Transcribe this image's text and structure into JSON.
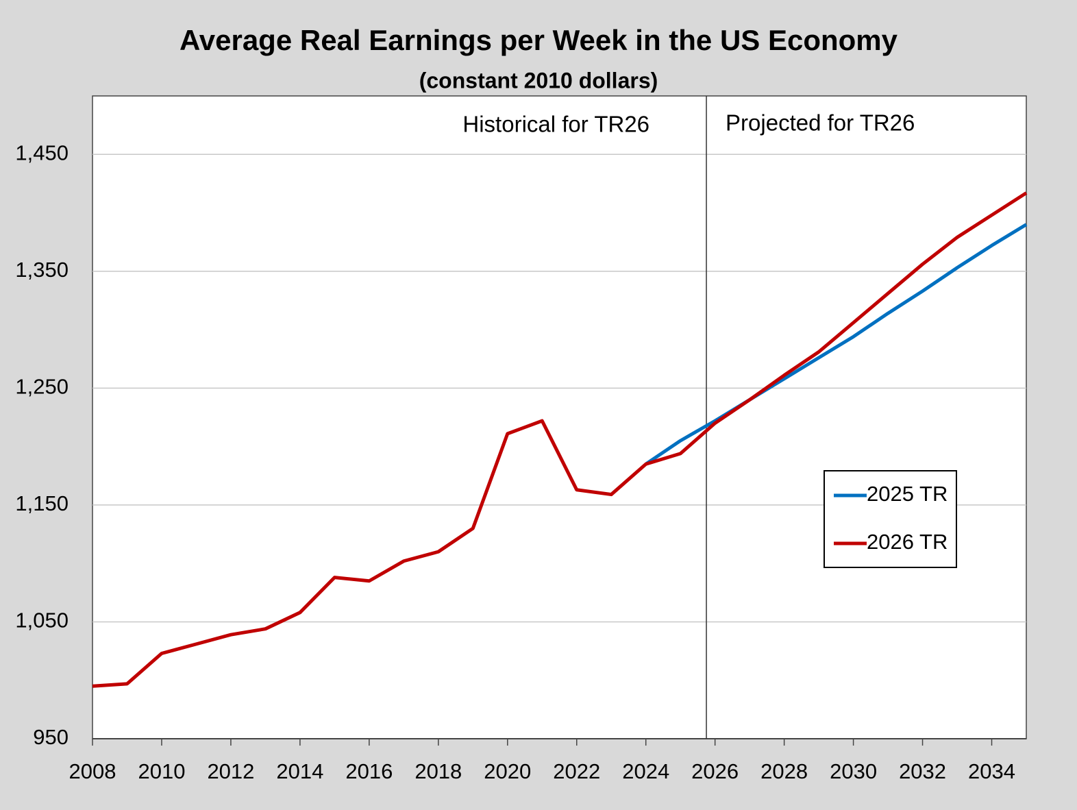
{
  "chart_data": {
    "type": "line",
    "title": "Average Real Earnings per Week in the US Economy",
    "subtitle": "(constant 2010 dollars)",
    "annotations": [
      "Historical for TR26",
      "Projected for TR26"
    ],
    "divider": 2025.75,
    "x": [
      2008,
      2009,
      2010,
      2011,
      2012,
      2013,
      2014,
      2015,
      2016,
      2017,
      2018,
      2019,
      2020,
      2021,
      2022,
      2023,
      2024,
      2025,
      2026,
      2027,
      2028,
      2029,
      2030,
      2031,
      2032,
      2033,
      2034,
      2035
    ],
    "series": [
      {
        "name": "2025 TR",
        "color": "#0070c0",
        "values": [
          null,
          null,
          null,
          null,
          null,
          null,
          null,
          null,
          null,
          null,
          null,
          null,
          null,
          null,
          null,
          null,
          1185,
          1205,
          1222,
          1240,
          1258,
          1276,
          1294,
          1314,
          1333,
          1353,
          1372,
          1390
        ]
      },
      {
        "name": "2026 TR",
        "color": "#c00000",
        "values": [
          995,
          997,
          1023,
          1031,
          1039,
          1044,
          1058,
          1088,
          1085,
          1102,
          1110,
          1130,
          1211,
          1222,
          1163,
          1159,
          1185,
          1194,
          1220,
          1240,
          1261,
          1281,
          1306,
          1331,
          1356,
          1379,
          1398,
          1417
        ]
      }
    ],
    "xlim": [
      2008,
      2035
    ],
    "xticks": [
      2008,
      2010,
      2012,
      2014,
      2016,
      2018,
      2020,
      2022,
      2024,
      2026,
      2028,
      2030,
      2032,
      2034
    ],
    "ylim": [
      950,
      1500
    ],
    "yticks": [
      950,
      {
        "value": 1050,
        "label": "1,050"
      },
      {
        "value": 1150,
        "label": "1,150"
      },
      {
        "value": 1250,
        "label": "1,250"
      },
      {
        "value": 1350,
        "label": "1,350"
      },
      {
        "value": 1450,
        "label": "1,450"
      }
    ],
    "grid": true,
    "legend": "center-right"
  }
}
